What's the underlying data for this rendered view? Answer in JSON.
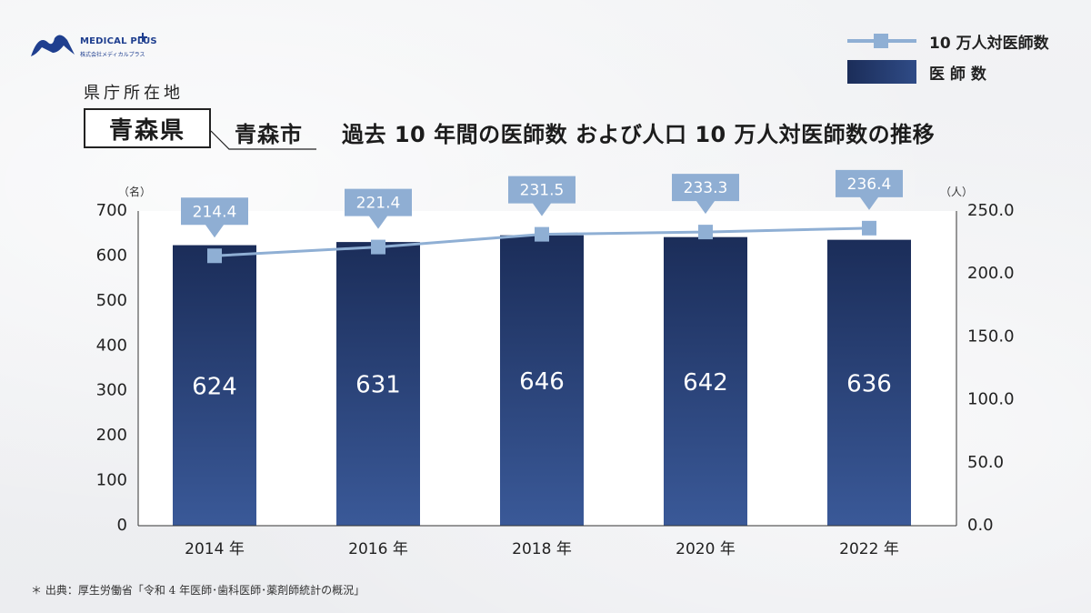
{
  "logo": {
    "name": "MEDICAL PLUS",
    "sub": "株式会社メディカルプラス"
  },
  "prefecture_caption": "県庁所在地",
  "prefecture": "青森県",
  "city": "青森市",
  "title": "過去 10 年間の医師数 および人口 10 万人対医師数の推移",
  "legend": {
    "line": "10 万人対医師数",
    "bar": "医 師 数"
  },
  "units": {
    "left": "（名）",
    "right": "（人）"
  },
  "source": "＊ 出典：厚生労働省「令和 4 年医師･歯科医師･薬剤師統計の概況」",
  "colors": {
    "bar_dark": "#1b2d59",
    "bar_light": "#3a5998",
    "line": "#8fafd4",
    "callout": "#8faed3"
  },
  "chart_data": {
    "type": "bar",
    "categories": [
      "2014 年",
      "2016 年",
      "2018 年",
      "2020 年",
      "2022 年"
    ],
    "series": [
      {
        "name": "医 師 数",
        "type": "bar",
        "axis": "left",
        "values": [
          624,
          631,
          646,
          642,
          636
        ],
        "labels": [
          "624",
          "631",
          "646",
          "642",
          "636"
        ]
      },
      {
        "name": "10 万人対医師数",
        "type": "line",
        "axis": "right",
        "values": [
          214.4,
          221.4,
          231.5,
          233.3,
          236.4
        ],
        "labels": [
          "214.4",
          "221.4",
          "231.5",
          "233.3",
          "236.4"
        ]
      }
    ],
    "y_left": {
      "range": [
        0,
        700
      ],
      "ticks": [
        "0",
        "100",
        "200",
        "300",
        "400",
        "500",
        "600",
        "700"
      ]
    },
    "y_right": {
      "range": [
        0,
        250
      ],
      "ticks": [
        "0.0",
        "50.0",
        "100.0",
        "150.0",
        "200.0",
        "250.0"
      ]
    },
    "grid": false,
    "legend_position": "top-right"
  }
}
